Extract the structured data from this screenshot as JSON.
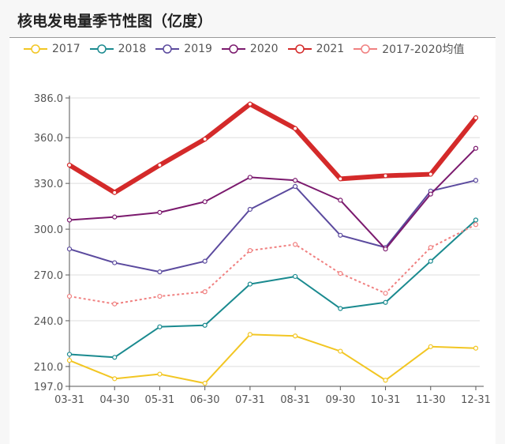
{
  "chart_data": {
    "type": "line",
    "title": "核电发电量季节性图（亿度）",
    "categories": [
      "03-31",
      "04-30",
      "05-31",
      "06-30",
      "07-31",
      "08-31",
      "09-30",
      "10-31",
      "11-30",
      "12-31"
    ],
    "ylim": [
      197,
      386
    ],
    "yticks": [
      "197.0",
      "210.0",
      "240.0",
      "270.0",
      "300.0",
      "330.0",
      "360.0",
      "386.0"
    ],
    "grid": true,
    "legend_position": "top",
    "series": [
      {
        "name": "2017",
        "color": "#f2c623",
        "values": [
          214,
          202,
          205,
          199,
          231,
          230,
          220,
          201,
          223,
          222
        ]
      },
      {
        "name": "2018",
        "color": "#1a8a8f",
        "values": [
          218,
          216,
          236,
          237,
          264,
          269,
          248,
          252,
          279,
          306
        ]
      },
      {
        "name": "2019",
        "color": "#5b4a9e",
        "values": [
          287,
          278,
          272,
          279,
          313,
          328,
          296,
          288,
          325,
          332
        ]
      },
      {
        "name": "2020",
        "color": "#7b1a6e",
        "values": [
          306,
          308,
          311,
          318,
          334,
          332,
          319,
          287,
          323,
          353
        ]
      },
      {
        "name": "2021",
        "color": "#d42a2a",
        "values": [
          342,
          324,
          342,
          359,
          382,
          366,
          333,
          335,
          336,
          373
        ]
      },
      {
        "name": "2017-2020均值",
        "color": "#f08080",
        "dashed": true,
        "values": [
          256,
          251,
          256,
          259,
          286,
          290,
          271,
          258,
          288,
          303
        ]
      }
    ]
  }
}
